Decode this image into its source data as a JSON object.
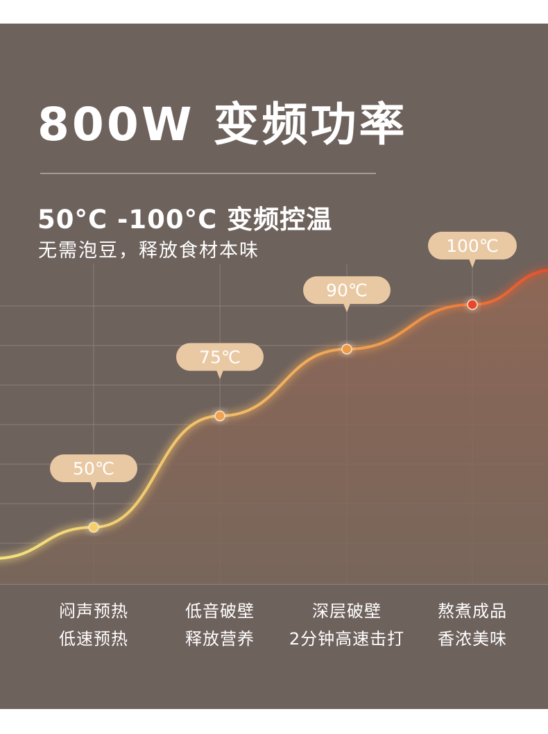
{
  "header": {
    "title": "800W 变频功率",
    "subtitle": "50°C -100°C 变频控温",
    "subtext": "无需泡豆，释放食材本味"
  },
  "colors": {
    "background": "#6e625d",
    "curve_start": "#f3d87a",
    "curve_end": "#e8572e",
    "label_bubble": "#e9c9a3"
  },
  "chart_data": {
    "type": "line",
    "title": "",
    "xlabel": "",
    "ylabel": "",
    "unit": "°C",
    "series": [
      {
        "points": [
          {
            "stage": 1,
            "value": 50,
            "label": "50℃"
          },
          {
            "stage": 2,
            "value": 75,
            "label": "75℃"
          },
          {
            "stage": 3,
            "value": 90,
            "label": "90℃"
          },
          {
            "stage": 4,
            "value": 100,
            "label": "100℃"
          }
        ]
      }
    ],
    "stages": [
      {
        "line1": "闷声预热",
        "line2": "低速预热"
      },
      {
        "line1": "低音破壁",
        "line2": "释放营养"
      },
      {
        "line1": "深层破壁",
        "line2": "2分钟高速击打"
      },
      {
        "line1": "熬煮成品",
        "line2": "香浓美味"
      }
    ],
    "grid": true
  }
}
